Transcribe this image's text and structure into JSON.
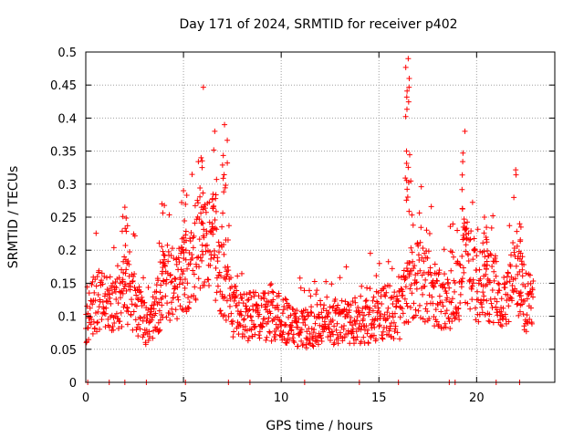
{
  "chart_data": {
    "type": "scatter",
    "title": "Day 171 of 2024, SRMTID for receiver p402",
    "xlabel": "GPS time / hours",
    "ylabel": "SRMTID / TECUs",
    "xlim": [
      0,
      24
    ],
    "ylim": [
      0,
      0.5
    ],
    "x_ticks": [
      0,
      5,
      10,
      15,
      20
    ],
    "x_tick_labels": [
      "0",
      "5",
      "10",
      "15",
      "20"
    ],
    "y_ticks": [
      0,
      0.05,
      0.1,
      0.15,
      0.2,
      0.25,
      0.3,
      0.35,
      0.4,
      0.45,
      0.5
    ],
    "y_tick_labels": [
      "0",
      "0.05",
      "0.1",
      "0.15",
      "0.2",
      "0.25",
      "0.3",
      "0.35",
      "0.4",
      "0.45",
      "0.5"
    ],
    "grid": true,
    "marker": "+",
    "series": [
      {
        "name": "SRMTID",
        "color": "#ff0000",
        "profile_hours": [
          0,
          0.5,
          1,
          1.5,
          2,
          2.5,
          3,
          3.5,
          4,
          4.5,
          5,
          5.5,
          6,
          6.5,
          7,
          7.5,
          8,
          9,
          10,
          11,
          12,
          13,
          14,
          15,
          15.5,
          16,
          16.5,
          17,
          17.5,
          18,
          18.5,
          19,
          19.5,
          20,
          20.5,
          21,
          21.5,
          22,
          22.5,
          22.9
        ],
        "profile_median": [
          0.09,
          0.12,
          0.13,
          0.12,
          0.14,
          0.12,
          0.09,
          0.1,
          0.14,
          0.15,
          0.16,
          0.19,
          0.22,
          0.2,
          0.15,
          0.11,
          0.1,
          0.1,
          0.1,
          0.08,
          0.09,
          0.09,
          0.09,
          0.1,
          0.11,
          0.1,
          0.14,
          0.16,
          0.14,
          0.13,
          0.12,
          0.14,
          0.19,
          0.14,
          0.15,
          0.14,
          0.12,
          0.17,
          0.12,
          0.12
        ],
        "peaks": [
          {
            "x": 2.0,
            "y": 0.265
          },
          {
            "x": 3.9,
            "y": 0.27
          },
          {
            "x": 5.0,
            "y": 0.29
          },
          {
            "x": 5.9,
            "y": 0.34
          },
          {
            "x": 6.6,
            "y": 0.38
          },
          {
            "x": 7.1,
            "y": 0.39
          },
          {
            "x": 16.5,
            "y": 0.49
          },
          {
            "x": 16.55,
            "y": 0.46
          },
          {
            "x": 19.4,
            "y": 0.38
          },
          {
            "x": 20.4,
            "y": 0.25
          },
          {
            "x": 22.2,
            "y": 0.24
          }
        ],
        "zero_points_x": [
          0.1,
          1.2,
          2.0,
          3.1,
          5.1,
          7.3,
          8.4,
          11.2,
          14.0,
          16.0,
          18.6,
          18.9,
          21.0,
          22.2
        ]
      }
    ]
  }
}
